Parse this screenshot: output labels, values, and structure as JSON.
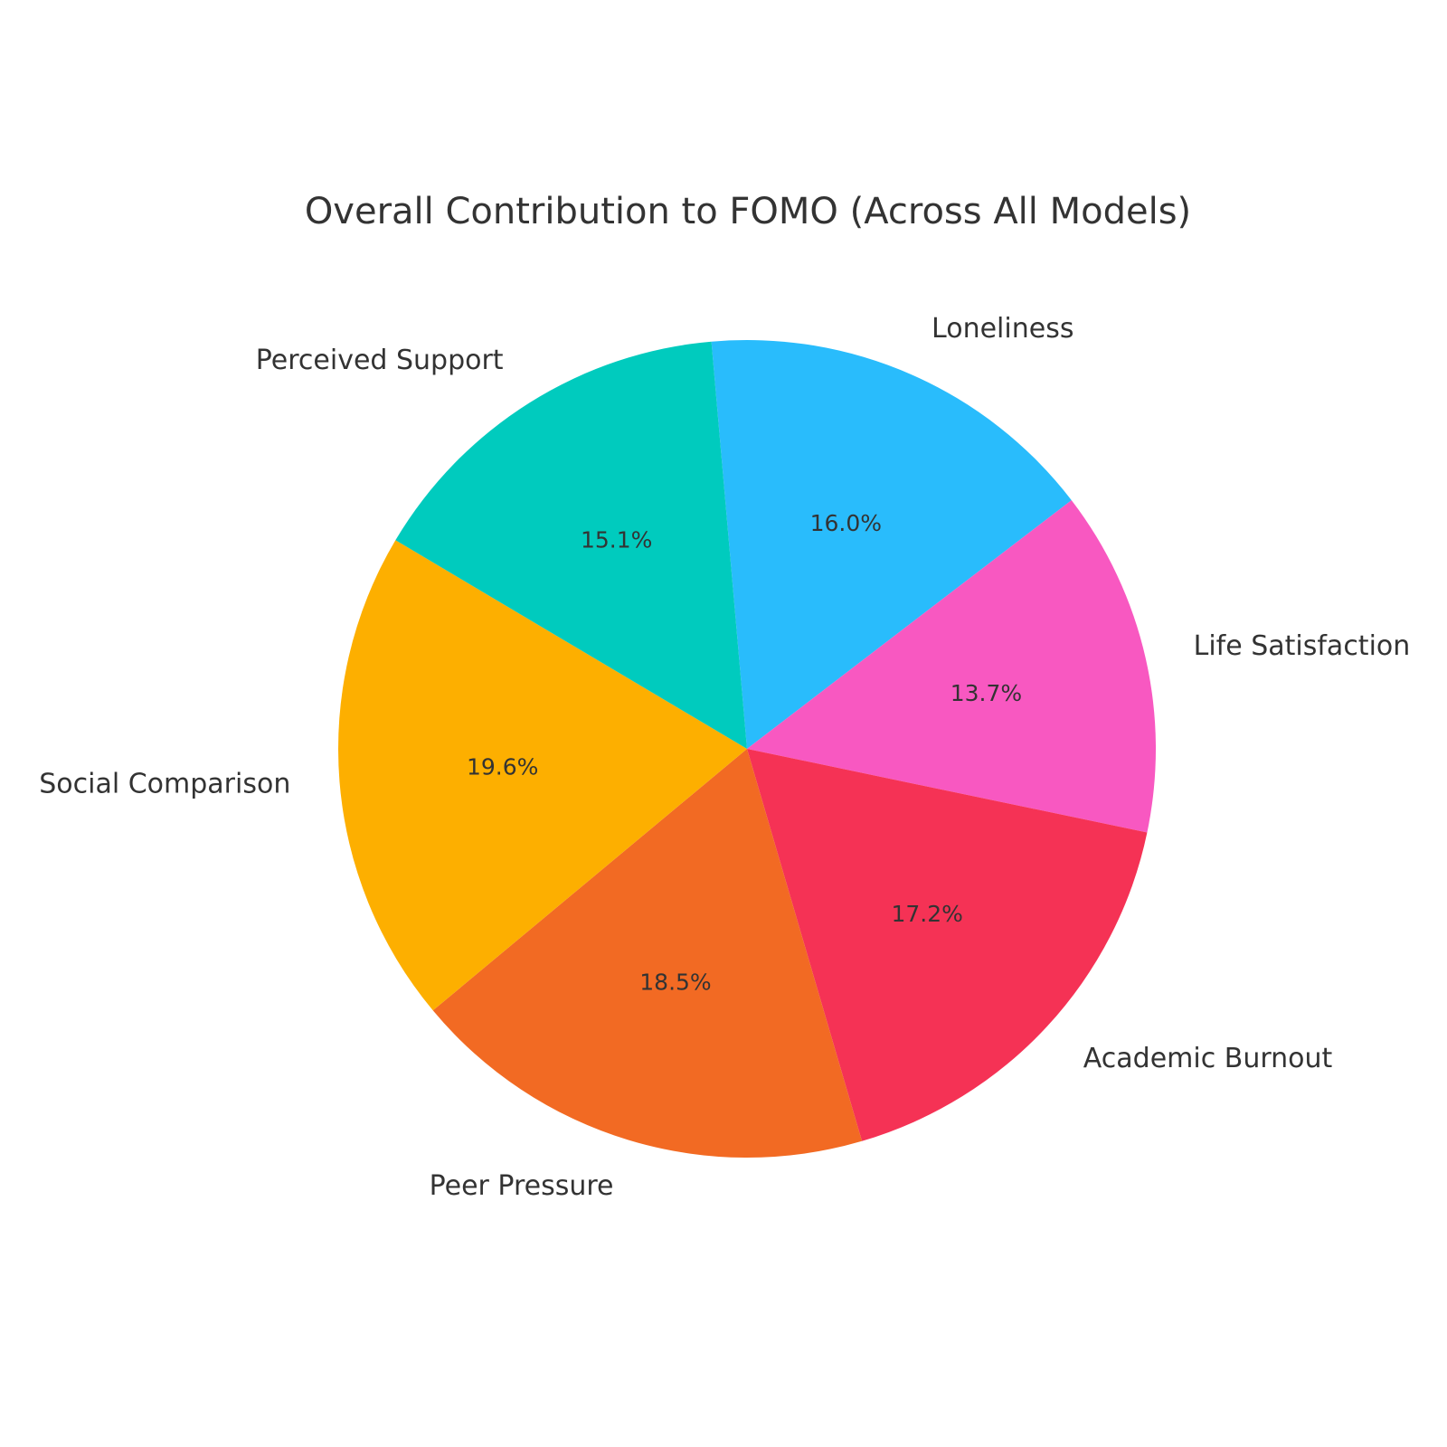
{
  "chart_data": {
    "type": "pie",
    "title": "Overall Contribution to FOMO (Across All Models)",
    "start_angle_deg": -5,
    "direction": "clockwise",
    "slices": [
      {
        "label": "Loneliness",
        "value": 16.0,
        "pct_label": "16.0%",
        "color": "#29BCFC"
      },
      {
        "label": "Life Satisfaction",
        "value": 13.7,
        "pct_label": "13.7%",
        "color": "#F858C1"
      },
      {
        "label": "Academic Burnout",
        "value": 17.2,
        "pct_label": "17.2%",
        "color": "#F53255"
      },
      {
        "label": "Peer Pressure",
        "value": 18.5,
        "pct_label": "18.5%",
        "color": "#F26A23"
      },
      {
        "label": "Social Comparison",
        "value": 19.6,
        "pct_label": "19.6%",
        "color": "#FDAF00"
      },
      {
        "label": "Perceived Support",
        "value": 15.1,
        "pct_label": "15.1%",
        "color": "#00CBBE"
      }
    ]
  }
}
